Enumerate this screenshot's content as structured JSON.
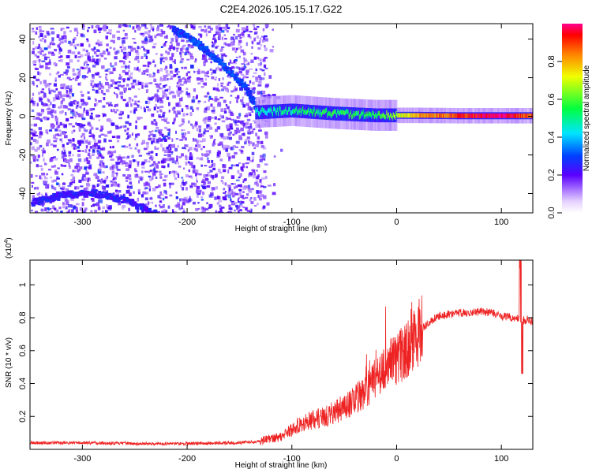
{
  "title": "C2E4.2026.105.15.17.G22",
  "colors": {
    "snr_line": "#ee2222",
    "background": "#ffffff",
    "axis": "#000000"
  },
  "chart_data": [
    {
      "type": "heatmap",
      "name": "spectrogram",
      "xlabel": "Height of straight line (km)",
      "ylabel": "Frequency (Hz)",
      "xlim": [
        -350,
        130
      ],
      "ylim": [
        -50,
        48
      ],
      "x_ticks": [
        -300,
        -200,
        -100,
        0,
        100
      ],
      "x_tick_labels": [
        "-300",
        "-200",
        "-100",
        "0",
        "100"
      ],
      "y_ticks": [
        -40,
        -20,
        0,
        20,
        40
      ],
      "y_tick_labels": [
        "-40",
        "-20",
        "0",
        "20",
        "40"
      ],
      "features": [
        {
          "label": "noise field",
          "x_range": [
            -350,
            -125
          ],
          "amplitude": 0.1
        },
        {
          "label": "downward arc",
          "x": [
            -215,
            -190,
            -165,
            -145,
            -135
          ],
          "y": [
            46,
            38,
            26,
            15,
            5
          ],
          "amplitude": 0.25
        },
        {
          "label": "lower arc",
          "x": [
            -350,
            -320,
            -290,
            -260,
            -230
          ],
          "y": [
            -44,
            -40,
            -39,
            -43,
            -50
          ],
          "amplitude": 0.2
        },
        {
          "label": "carrier line",
          "x": [
            -135,
            -100,
            -60,
            -20,
            20,
            60,
            100,
            130
          ],
          "y": [
            2,
            3,
            1.5,
            0.5,
            0.5,
            0.3,
            0.3,
            0.3
          ],
          "amplitude": [
            0.45,
            0.5,
            0.55,
            0.55,
            0.8,
            0.9,
            1.0,
            0.85
          ]
        }
      ],
      "colorbar": {
        "label": "Normalized spectral amplitude",
        "range": [
          0,
          1
        ],
        "ticks": [
          0.0,
          0.2,
          0.4,
          0.6,
          0.8
        ],
        "tick_labels": [
          "0.0",
          "0.2",
          "0.4",
          "0.6",
          "0.8"
        ]
      }
    },
    {
      "type": "line",
      "name": "snr",
      "xlabel": "Height of straight line (km)",
      "ylabel": "SNR (10 * v/v)",
      "y_multiplier": "(x10",
      "y_multiplier_exp": "4",
      "y_multiplier_close": ")",
      "xlim": [
        -350,
        130
      ],
      "ylim": [
        0,
        1.15
      ],
      "x_ticks": [
        -300,
        -200,
        -100,
        0,
        100
      ],
      "x_tick_labels": [
        "-300",
        "-200",
        "-100",
        "0",
        "100"
      ],
      "y_ticks": [
        0.2,
        0.4,
        0.6,
        0.8,
        1.0
      ],
      "y_tick_labels": [
        "0.2",
        "0.4",
        "0.6",
        "0.8",
        "1"
      ],
      "series": [
        {
          "name": "SNR",
          "x": [
            -350,
            -300,
            -250,
            -200,
            -150,
            -130,
            -110,
            -100,
            -90,
            -80,
            -70,
            -60,
            -50,
            -40,
            -30,
            -20,
            -10,
            0,
            10,
            20,
            30,
            40,
            50,
            60,
            70,
            80,
            90,
            95,
            100,
            110,
            115,
            118,
            120,
            125,
            130
          ],
          "y": [
            0.04,
            0.04,
            0.035,
            0.035,
            0.04,
            0.05,
            0.08,
            0.12,
            0.16,
            0.18,
            0.2,
            0.22,
            0.26,
            0.3,
            0.35,
            0.42,
            0.5,
            0.55,
            0.6,
            0.7,
            0.77,
            0.81,
            0.82,
            0.83,
            0.83,
            0.84,
            0.83,
            0.82,
            0.81,
            0.8,
            0.8,
            0.79,
            0.78,
            0.79,
            0.78
          ]
        }
      ]
    }
  ]
}
